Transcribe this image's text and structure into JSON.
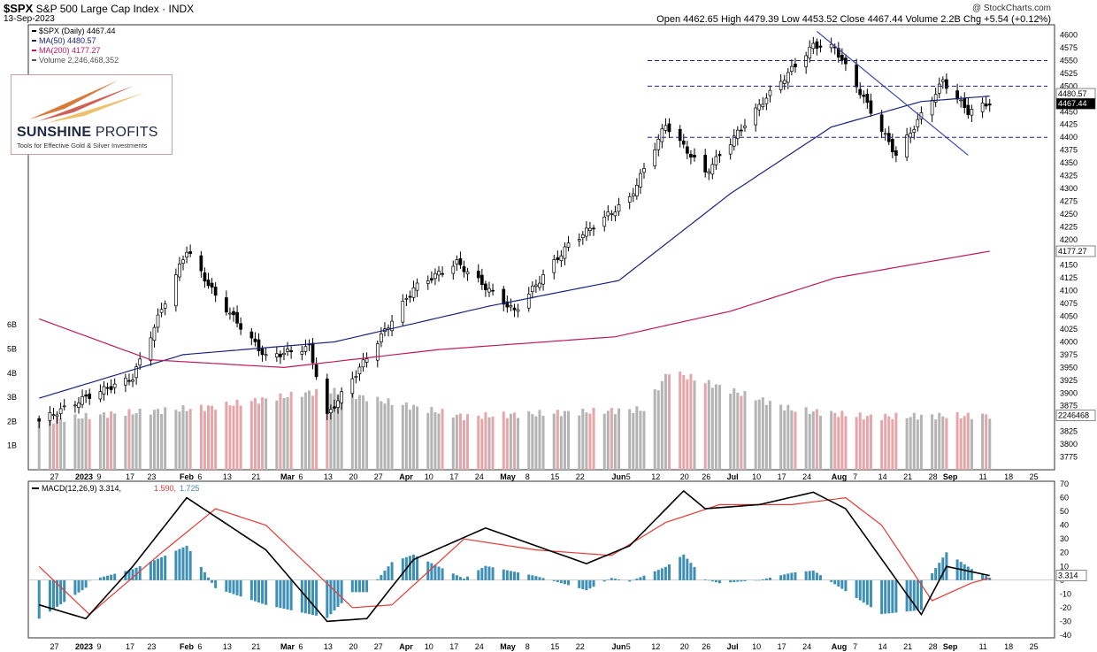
{
  "header": {
    "symbol": "$SPX",
    "name": "S&P 500 Large Cap Index",
    "exchange": "INDX",
    "date": "13-Sep-2023",
    "credit": "@ StockCharts.com",
    "ohlc": "Open 4462.65  High 4479.39  Low 4453.52  Close 4467.44  Volume 2.2B  Chg +5.54 (+0.12%)"
  },
  "legend": {
    "price": "$SPX (Daily) 4467.44",
    "ma50": "MA(50) 4480.57",
    "ma200": "MA(200) 4177.27",
    "volume": "Volume 2,246,468,352"
  },
  "logo": {
    "name_bold": "SUNSHINE",
    "name_light": " PROFITS",
    "tagline": "Tools for Effective Gold & Silver Investments"
  },
  "colors": {
    "up_candle": "#ffffff",
    "down_candle": "#000000",
    "ma50": "#1a237e",
    "ma200": "#c2185b",
    "volume_up": "#b4b4b4",
    "volume_down": "#e6a5a8",
    "macd_line": "#000000",
    "signal_line": "#e53935",
    "histogram": "#3d8fb3",
    "support_lines": "#1a237e",
    "trendline": "#3949ab"
  },
  "chart_data": [
    {
      "type": "candlestick",
      "title": "$SPX (Daily)",
      "price_axis": {
        "ylim": [
          3750,
          4620
        ],
        "ticks": [
          3775,
          3800,
          3825,
          3850,
          3875,
          3900,
          3925,
          3950,
          3975,
          4000,
          4025,
          4050,
          4075,
          4100,
          4125,
          4150,
          4175,
          4200,
          4225,
          4250,
          4275,
          4300,
          4325,
          4350,
          4375,
          4400,
          4425,
          4450,
          4475,
          4500,
          4525,
          4550,
          4575,
          4600
        ]
      },
      "volume_axis": {
        "ticks": [
          "1B",
          "2B",
          "3B",
          "4B",
          "5B",
          "6B"
        ],
        "values": [
          1,
          2,
          3,
          4,
          5,
          6
        ]
      },
      "x_labels": [
        "27",
        "2023",
        "9",
        "17",
        "23",
        "Feb",
        "6",
        "13",
        "21",
        "Mar",
        "6",
        "13",
        "20",
        "27",
        "Apr",
        "10",
        "17",
        "24",
        "May",
        "8",
        "15",
        "22",
        "Jun",
        "5",
        "12",
        "20",
        "26",
        "Jul",
        "10",
        "17",
        "24",
        "Aug",
        "7",
        "14",
        "21",
        "28",
        "Sep",
        "11",
        "18",
        "25"
      ],
      "last_price_tags": [
        "4480.57",
        "4467.44",
        "4177.27",
        "2246468"
      ],
      "support_levels": [
        4550,
        4500,
        4400
      ],
      "trendline": {
        "from": [
          "2023-07-27",
          4607
        ],
        "to": [
          "2023-09-07",
          4365
        ]
      },
      "closes_key_points": [
        [
          "2022-12-23",
          3845
        ],
        [
          "2023-01-06",
          3895
        ],
        [
          "2023-01-18",
          3930
        ],
        [
          "2023-02-02",
          4180
        ],
        [
          "2023-02-10",
          4090
        ],
        [
          "2023-02-24",
          3970
        ],
        [
          "2023-03-08",
          3990
        ],
        [
          "2023-03-13",
          3855
        ],
        [
          "2023-03-24",
          3970
        ],
        [
          "2023-04-06",
          4105
        ],
        [
          "2023-04-18",
          4155
        ],
        [
          "2023-05-04",
          4060
        ],
        [
          "2023-05-19",
          4190
        ],
        [
          "2023-06-05",
          4280
        ],
        [
          "2023-06-15",
          4425
        ],
        [
          "2023-06-26",
          4330
        ],
        [
          "2023-07-12",
          4470
        ],
        [
          "2023-07-26",
          4580
        ],
        [
          "2023-08-01",
          4575
        ],
        [
          "2023-08-18",
          4365
        ],
        [
          "2023-08-31",
          4510
        ],
        [
          "2023-09-07",
          4450
        ],
        [
          "2023-09-13",
          4467.44
        ]
      ],
      "ma50_key_points": [
        [
          "2022-12-23",
          3890
        ],
        [
          "2023-02-01",
          3975
        ],
        [
          "2023-03-15",
          4000
        ],
        [
          "2023-04-27",
          4070
        ],
        [
          "2023-06-02",
          4120
        ],
        [
          "2023-07-03",
          4290
        ],
        [
          "2023-07-31",
          4420
        ],
        [
          "2023-08-25",
          4470
        ],
        [
          "2023-09-13",
          4480.57
        ]
      ],
      "ma200_key_points": [
        [
          "2022-12-23",
          4045
        ],
        [
          "2023-01-23",
          3965
        ],
        [
          "2023-03-01",
          3950
        ],
        [
          "2023-04-13",
          3985
        ],
        [
          "2023-06-01",
          4010
        ],
        [
          "2023-07-03",
          4060
        ],
        [
          "2023-08-01",
          4125
        ],
        [
          "2023-09-13",
          4177.27
        ]
      ],
      "volume_B_key_points": [
        [
          "2022-12-23",
          2.0
        ],
        [
          "2023-01-11",
          2.3
        ],
        [
          "2023-02-09",
          2.6
        ],
        [
          "2023-03-13",
          3.3
        ],
        [
          "2023-04-20",
          2.2
        ],
        [
          "2023-06-09",
          2.5
        ],
        [
          "2023-06-16",
          4.1
        ],
        [
          "2023-07-20",
          2.5
        ],
        [
          "2023-08-10",
          2.2
        ],
        [
          "2023-09-13",
          2.25
        ]
      ]
    },
    {
      "type": "line",
      "title": "MACD(12,26,9)",
      "series": [
        {
          "name": "MACD(12,26,9)",
          "last": "3.314"
        },
        {
          "name": "signal",
          "last": "1.590"
        },
        {
          "name": "histogram",
          "last": "1.725"
        }
      ],
      "ylim": [
        -42,
        72
      ],
      "ticks": [
        70,
        60,
        50,
        40,
        30,
        20,
        10,
        0,
        -10,
        -20,
        -30,
        -40
      ],
      "tag": "3.314",
      "macd_key_points": [
        [
          "2022-12-23",
          -18
        ],
        [
          "2023-01-05",
          -28
        ],
        [
          "2023-01-18",
          10
        ],
        [
          "2023-02-02",
          60
        ],
        [
          "2023-02-24",
          22
        ],
        [
          "2023-03-13",
          -30
        ],
        [
          "2023-03-24",
          -28
        ],
        [
          "2023-04-06",
          15
        ],
        [
          "2023-04-26",
          38
        ],
        [
          "2023-05-24",
          12
        ],
        [
          "2023-06-05",
          25
        ],
        [
          "2023-06-20",
          65
        ],
        [
          "2023-06-26",
          52
        ],
        [
          "2023-07-11",
          55
        ],
        [
          "2023-07-26",
          64
        ],
        [
          "2023-08-04",
          52
        ],
        [
          "2023-08-25",
          -25
        ],
        [
          "2023-09-01",
          10
        ],
        [
          "2023-09-13",
          3.314
        ]
      ],
      "signal_key_points": [
        [
          "2022-12-23",
          10
        ],
        [
          "2023-01-06",
          -25
        ],
        [
          "2023-01-26",
          20
        ],
        [
          "2023-02-10",
          52
        ],
        [
          "2023-02-24",
          40
        ],
        [
          "2023-03-20",
          -20
        ],
        [
          "2023-03-31",
          -18
        ],
        [
          "2023-04-20",
          30
        ],
        [
          "2023-05-10",
          22
        ],
        [
          "2023-05-31",
          18
        ],
        [
          "2023-06-15",
          42
        ],
        [
          "2023-06-30",
          55
        ],
        [
          "2023-07-20",
          55
        ],
        [
          "2023-08-04",
          60
        ],
        [
          "2023-08-14",
          40
        ],
        [
          "2023-08-28",
          -15
        ],
        [
          "2023-09-08",
          -2
        ],
        [
          "2023-09-13",
          1.59
        ]
      ]
    }
  ]
}
